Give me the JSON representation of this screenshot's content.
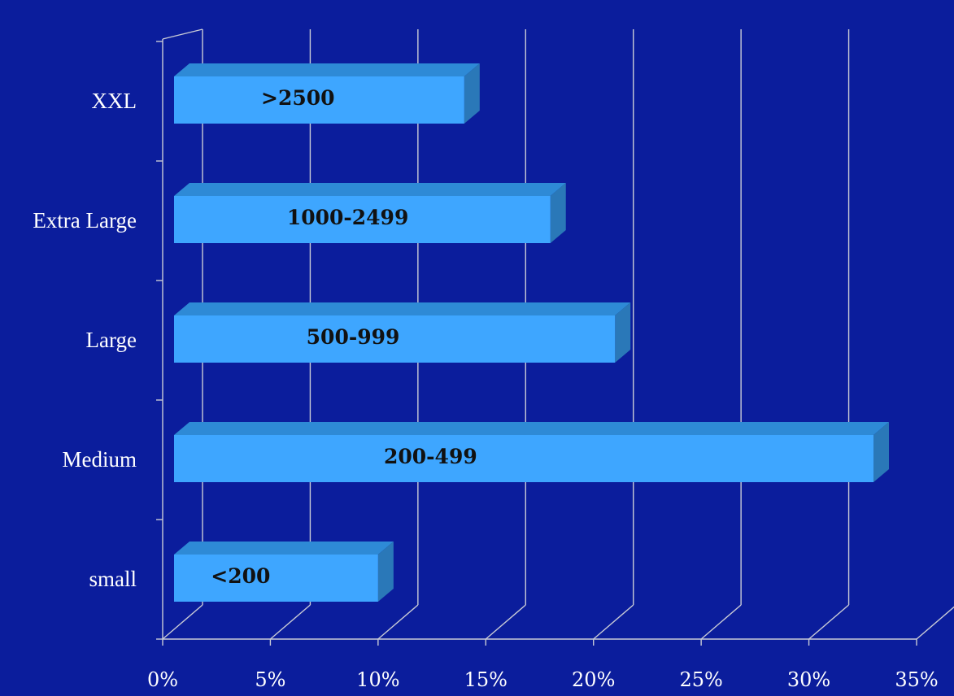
{
  "chart_data": {
    "type": "bar",
    "orientation": "horizontal",
    "three_d": true,
    "categories": [
      "small",
      "Medium",
      "Large",
      "Extra Large",
      "XXL"
    ],
    "values": [
      10,
      33,
      21,
      18,
      14
    ],
    "data_labels": [
      "<200",
      "200-499",
      "500-999",
      "1000-2499",
      ">2500"
    ],
    "x_tick_labels": [
      "0%",
      "5%",
      "10%",
      "15%",
      "20%",
      "25%",
      "30%",
      "35%"
    ],
    "xlim": [
      0,
      35
    ],
    "unit": "%",
    "grid": true,
    "legend": "none",
    "title": "",
    "xlabel": "",
    "ylabel": ""
  },
  "colors": {
    "background": "#0b1d9c",
    "bar_front": "#3ea6ff",
    "bar_top": "#2e8ad6",
    "bar_side": "#2a78b8",
    "gridline": "#c9cbd6",
    "label_text": "#ffffff",
    "data_label_text": "#111111"
  }
}
